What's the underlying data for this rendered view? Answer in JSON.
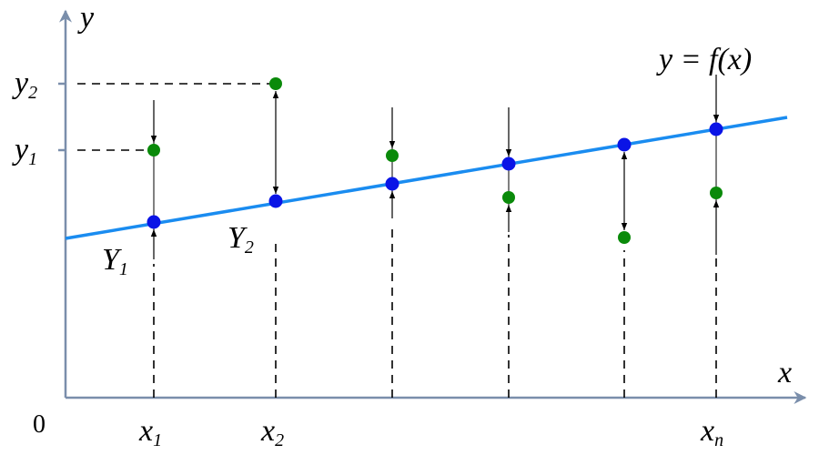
{
  "axes": {
    "x": "x",
    "y": "y",
    "origin": "0"
  },
  "x_labels": [
    {
      "base": "x",
      "sub": "1"
    },
    {
      "base": "x",
      "sub": "2"
    },
    {
      "base": "x",
      "sub": "n"
    }
  ],
  "y_labels": [
    {
      "base": "y",
      "sub": "1"
    },
    {
      "base": "y",
      "sub": "2"
    }
  ],
  "point_labels": [
    {
      "base": "Y",
      "sub": "1"
    },
    {
      "base": "Y",
      "sub": "2"
    }
  ],
  "curve_label": "y = f(x)"
}
